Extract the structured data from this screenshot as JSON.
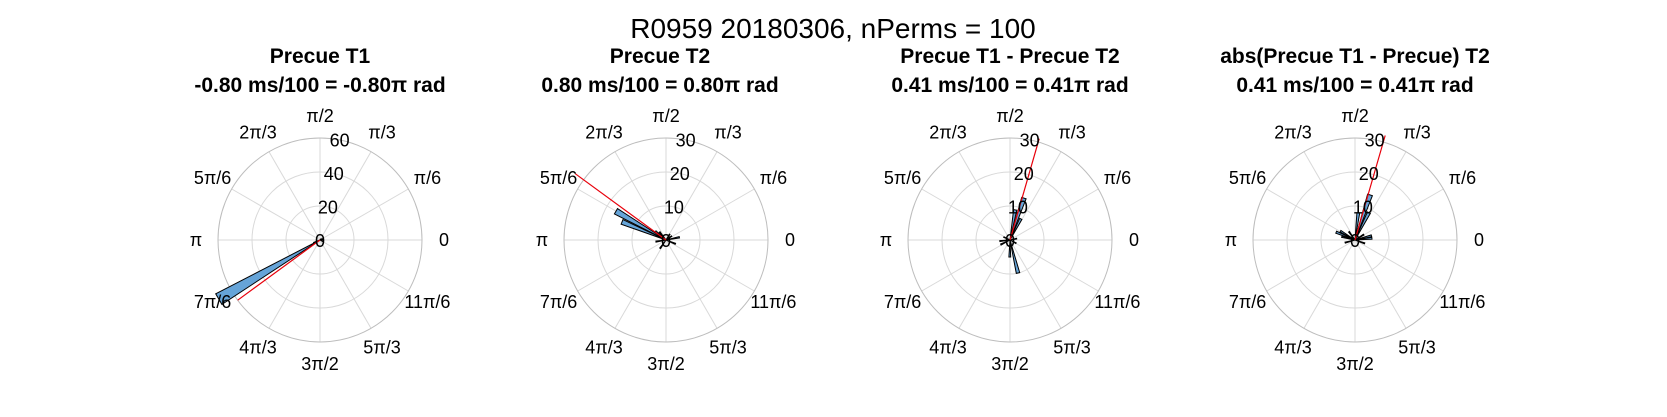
{
  "figure_title": "R0959 20180306, nPerms = 100",
  "colors": {
    "bar_fill": "#66a4d8",
    "bar_edge": "#000000",
    "mean_line": "#e8000b",
    "grid": "#d9d9d9"
  },
  "angle_tick_labels": [
    "0",
    "π/6",
    "π/3",
    "π/2",
    "2π/3",
    "5π/6",
    "π",
    "7π/6",
    "4π/3",
    "3π/2",
    "5π/3",
    "11π/6"
  ],
  "chart_data": [
    {
      "type": "polar-histogram",
      "title": "Precue T1",
      "subtitle": "-0.80 ms/100 = -0.80π rad",
      "rlim": [
        0,
        60
      ],
      "r_ticks": [
        20,
        40,
        60
      ],
      "r_tick_labels": [
        "20",
        "40",
        "60"
      ],
      "mean_angle_rad": -2.51,
      "mean_line_length": 60,
      "bins": [
        {
          "theta": 3.67,
          "count": 69
        },
        {
          "theta": 3.55,
          "count": 4
        },
        {
          "theta": 0.1,
          "count": 2
        },
        {
          "theta": 0.4,
          "count": 2
        },
        {
          "theta": 5.8,
          "count": 2
        },
        {
          "theta": 0.8,
          "count": 1
        }
      ]
    },
    {
      "type": "polar-histogram",
      "title": "Precue T2",
      "subtitle": "0.80 ms/100 = 0.80π rad",
      "rlim": [
        0,
        30
      ],
      "r_ticks": [
        10,
        20,
        30
      ],
      "r_tick_labels": [
        "10",
        "20",
        "30"
      ],
      "mean_angle_rad": 2.51,
      "mean_line_length": 33,
      "bins": [
        {
          "theta": 2.62,
          "count": 17
        },
        {
          "theta": 2.75,
          "count": 14
        },
        {
          "theta": 2.45,
          "count": 4
        },
        {
          "theta": 2.25,
          "count": 3
        },
        {
          "theta": 3.3,
          "count": 3
        },
        {
          "theta": 0.2,
          "count": 4
        },
        {
          "theta": 5.9,
          "count": 3
        },
        {
          "theta": 0.6,
          "count": 2
        },
        {
          "theta": 4.1,
          "count": 3
        },
        {
          "theta": 1.0,
          "count": 2
        }
      ]
    },
    {
      "type": "polar-histogram",
      "title": "Precue T1 - Precue T2",
      "subtitle": "0.41 ms/100 = 0.41π rad",
      "rlim": [
        0,
        30
      ],
      "r_ticks": [
        10,
        20,
        30
      ],
      "r_tick_labels": [
        "10",
        "20",
        "30"
      ],
      "mean_angle_rad": 1.29,
      "mean_line_length": 31,
      "bins": [
        {
          "theta": 1.25,
          "count": 13
        },
        {
          "theta": 1.4,
          "count": 9
        },
        {
          "theta": 1.1,
          "count": 7
        },
        {
          "theta": 4.95,
          "count": 10
        },
        {
          "theta": 4.7,
          "count": 5
        },
        {
          "theta": 3.6,
          "count": 3
        },
        {
          "theta": 3.25,
          "count": 3
        },
        {
          "theta": 0.2,
          "count": 2
        },
        {
          "theta": 5.8,
          "count": 2
        },
        {
          "theta": 2.7,
          "count": 2
        }
      ]
    },
    {
      "type": "polar-histogram",
      "title": "abs(Precue T1 - Precue) T2",
      "subtitle": "0.41 ms/100 = 0.41π rad",
      "rlim": [
        0,
        30
      ],
      "r_ticks": [
        10,
        20,
        30
      ],
      "r_tick_labels": [
        "10",
        "20",
        "30"
      ],
      "mean_angle_rad": 1.29,
      "mean_line_length": 32,
      "bins": [
        {
          "theta": 1.25,
          "count": 14
        },
        {
          "theta": 1.1,
          "count": 9
        },
        {
          "theta": 1.45,
          "count": 8
        },
        {
          "theta": 2.75,
          "count": 6
        },
        {
          "theta": 2.6,
          "count": 5
        },
        {
          "theta": 2.9,
          "count": 4
        },
        {
          "theta": 0.25,
          "count": 5
        },
        {
          "theta": 0.1,
          "count": 5
        },
        {
          "theta": 3.4,
          "count": 3
        },
        {
          "theta": 5.95,
          "count": 3
        },
        {
          "theta": 2.2,
          "count": 3
        },
        {
          "theta": 0.55,
          "count": 3
        }
      ]
    }
  ]
}
